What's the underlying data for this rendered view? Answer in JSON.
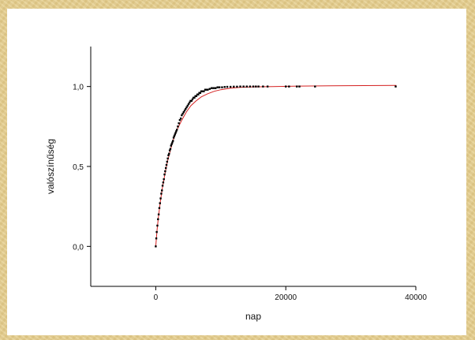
{
  "chart_data": {
    "type": "scatter",
    "title": "",
    "xlabel": "nap",
    "ylabel": "valószínűség",
    "xlim": [
      -10000,
      40000
    ],
    "ylim": [
      -0.25,
      1.25
    ],
    "x_ticks": [
      0,
      20000,
      40000
    ],
    "x_tick_labels": [
      "0",
      "20000",
      "40000"
    ],
    "y_ticks": [
      0.0,
      0.5,
      1.0
    ],
    "y_tick_labels": [
      "0,0",
      "0,5",
      "1,0"
    ],
    "grid": false,
    "legend": "none",
    "colors": {
      "points": "#000000",
      "fit": "#d42020"
    },
    "series": [
      {
        "kind": "points",
        "x": [
          0,
          80,
          150,
          250,
          350,
          450,
          550,
          650,
          750,
          850,
          950,
          1050,
          1150,
          1250,
          1350,
          1450,
          1550,
          1650,
          1750,
          1850,
          1950,
          2050,
          2150,
          2250,
          2350,
          2450,
          2550,
          2650,
          2750,
          2850,
          2950,
          3050,
          3150,
          3250,
          3400,
          3550,
          3700,
          3850,
          4000,
          4150,
          4300,
          4450,
          4600,
          4750,
          4900,
          5050,
          5200,
          5350,
          5500,
          5650,
          5800,
          5950,
          6100,
          6250,
          6400,
          6550,
          6700,
          6850,
          7000,
          7200,
          7400,
          7600,
          7800,
          8000,
          8300,
          8600,
          8900,
          9200,
          9500,
          9800,
          10200,
          10600,
          11000,
          11500,
          12000,
          12500,
          13000,
          13500,
          14000,
          14500,
          15000,
          15400,
          15800,
          16500,
          17200,
          20000,
          20500,
          21700,
          22100,
          24500,
          36900
        ],
        "y": [
          0.0,
          0.05,
          0.09,
          0.13,
          0.17,
          0.2,
          0.24,
          0.27,
          0.3,
          0.33,
          0.35,
          0.38,
          0.4,
          0.42,
          0.45,
          0.47,
          0.49,
          0.51,
          0.53,
          0.55,
          0.57,
          0.58,
          0.6,
          0.61,
          0.63,
          0.64,
          0.65,
          0.66,
          0.68,
          0.69,
          0.7,
          0.71,
          0.72,
          0.73,
          0.75,
          0.77,
          0.79,
          0.8,
          0.82,
          0.83,
          0.84,
          0.85,
          0.86,
          0.87,
          0.88,
          0.89,
          0.9,
          0.91,
          0.91,
          0.92,
          0.93,
          0.93,
          0.94,
          0.94,
          0.95,
          0.95,
          0.96,
          0.96,
          0.97,
          0.97,
          0.97,
          0.98,
          0.98,
          0.98,
          0.985,
          0.99,
          0.99,
          0.99,
          0.995,
          0.995,
          0.995,
          0.997,
          0.998,
          0.998,
          0.999,
          0.999,
          1.0,
          1.0,
          1.0,
          1.0,
          1.0,
          1.0,
          1.0,
          1.0,
          1.0,
          1.0,
          1.0,
          1.0,
          1.0,
          1.0,
          1.0
        ]
      },
      {
        "kind": "fit",
        "x": [
          0,
          200,
          400,
          700,
          1000,
          1400,
          1800,
          2300,
          2800,
          3400,
          4000,
          4700,
          5400,
          6200,
          7000,
          8000,
          9000,
          10000,
          11500,
          13000,
          15000,
          18000,
          22000,
          27000,
          32000,
          37000
        ],
        "y": [
          0.0,
          0.1,
          0.18,
          0.28,
          0.36,
          0.45,
          0.53,
          0.61,
          0.68,
          0.74,
          0.79,
          0.84,
          0.88,
          0.91,
          0.935,
          0.955,
          0.97,
          0.98,
          0.99,
          0.995,
          0.998,
          1.0,
          1.003,
          1.005,
          1.006,
          1.007
        ]
      }
    ]
  }
}
